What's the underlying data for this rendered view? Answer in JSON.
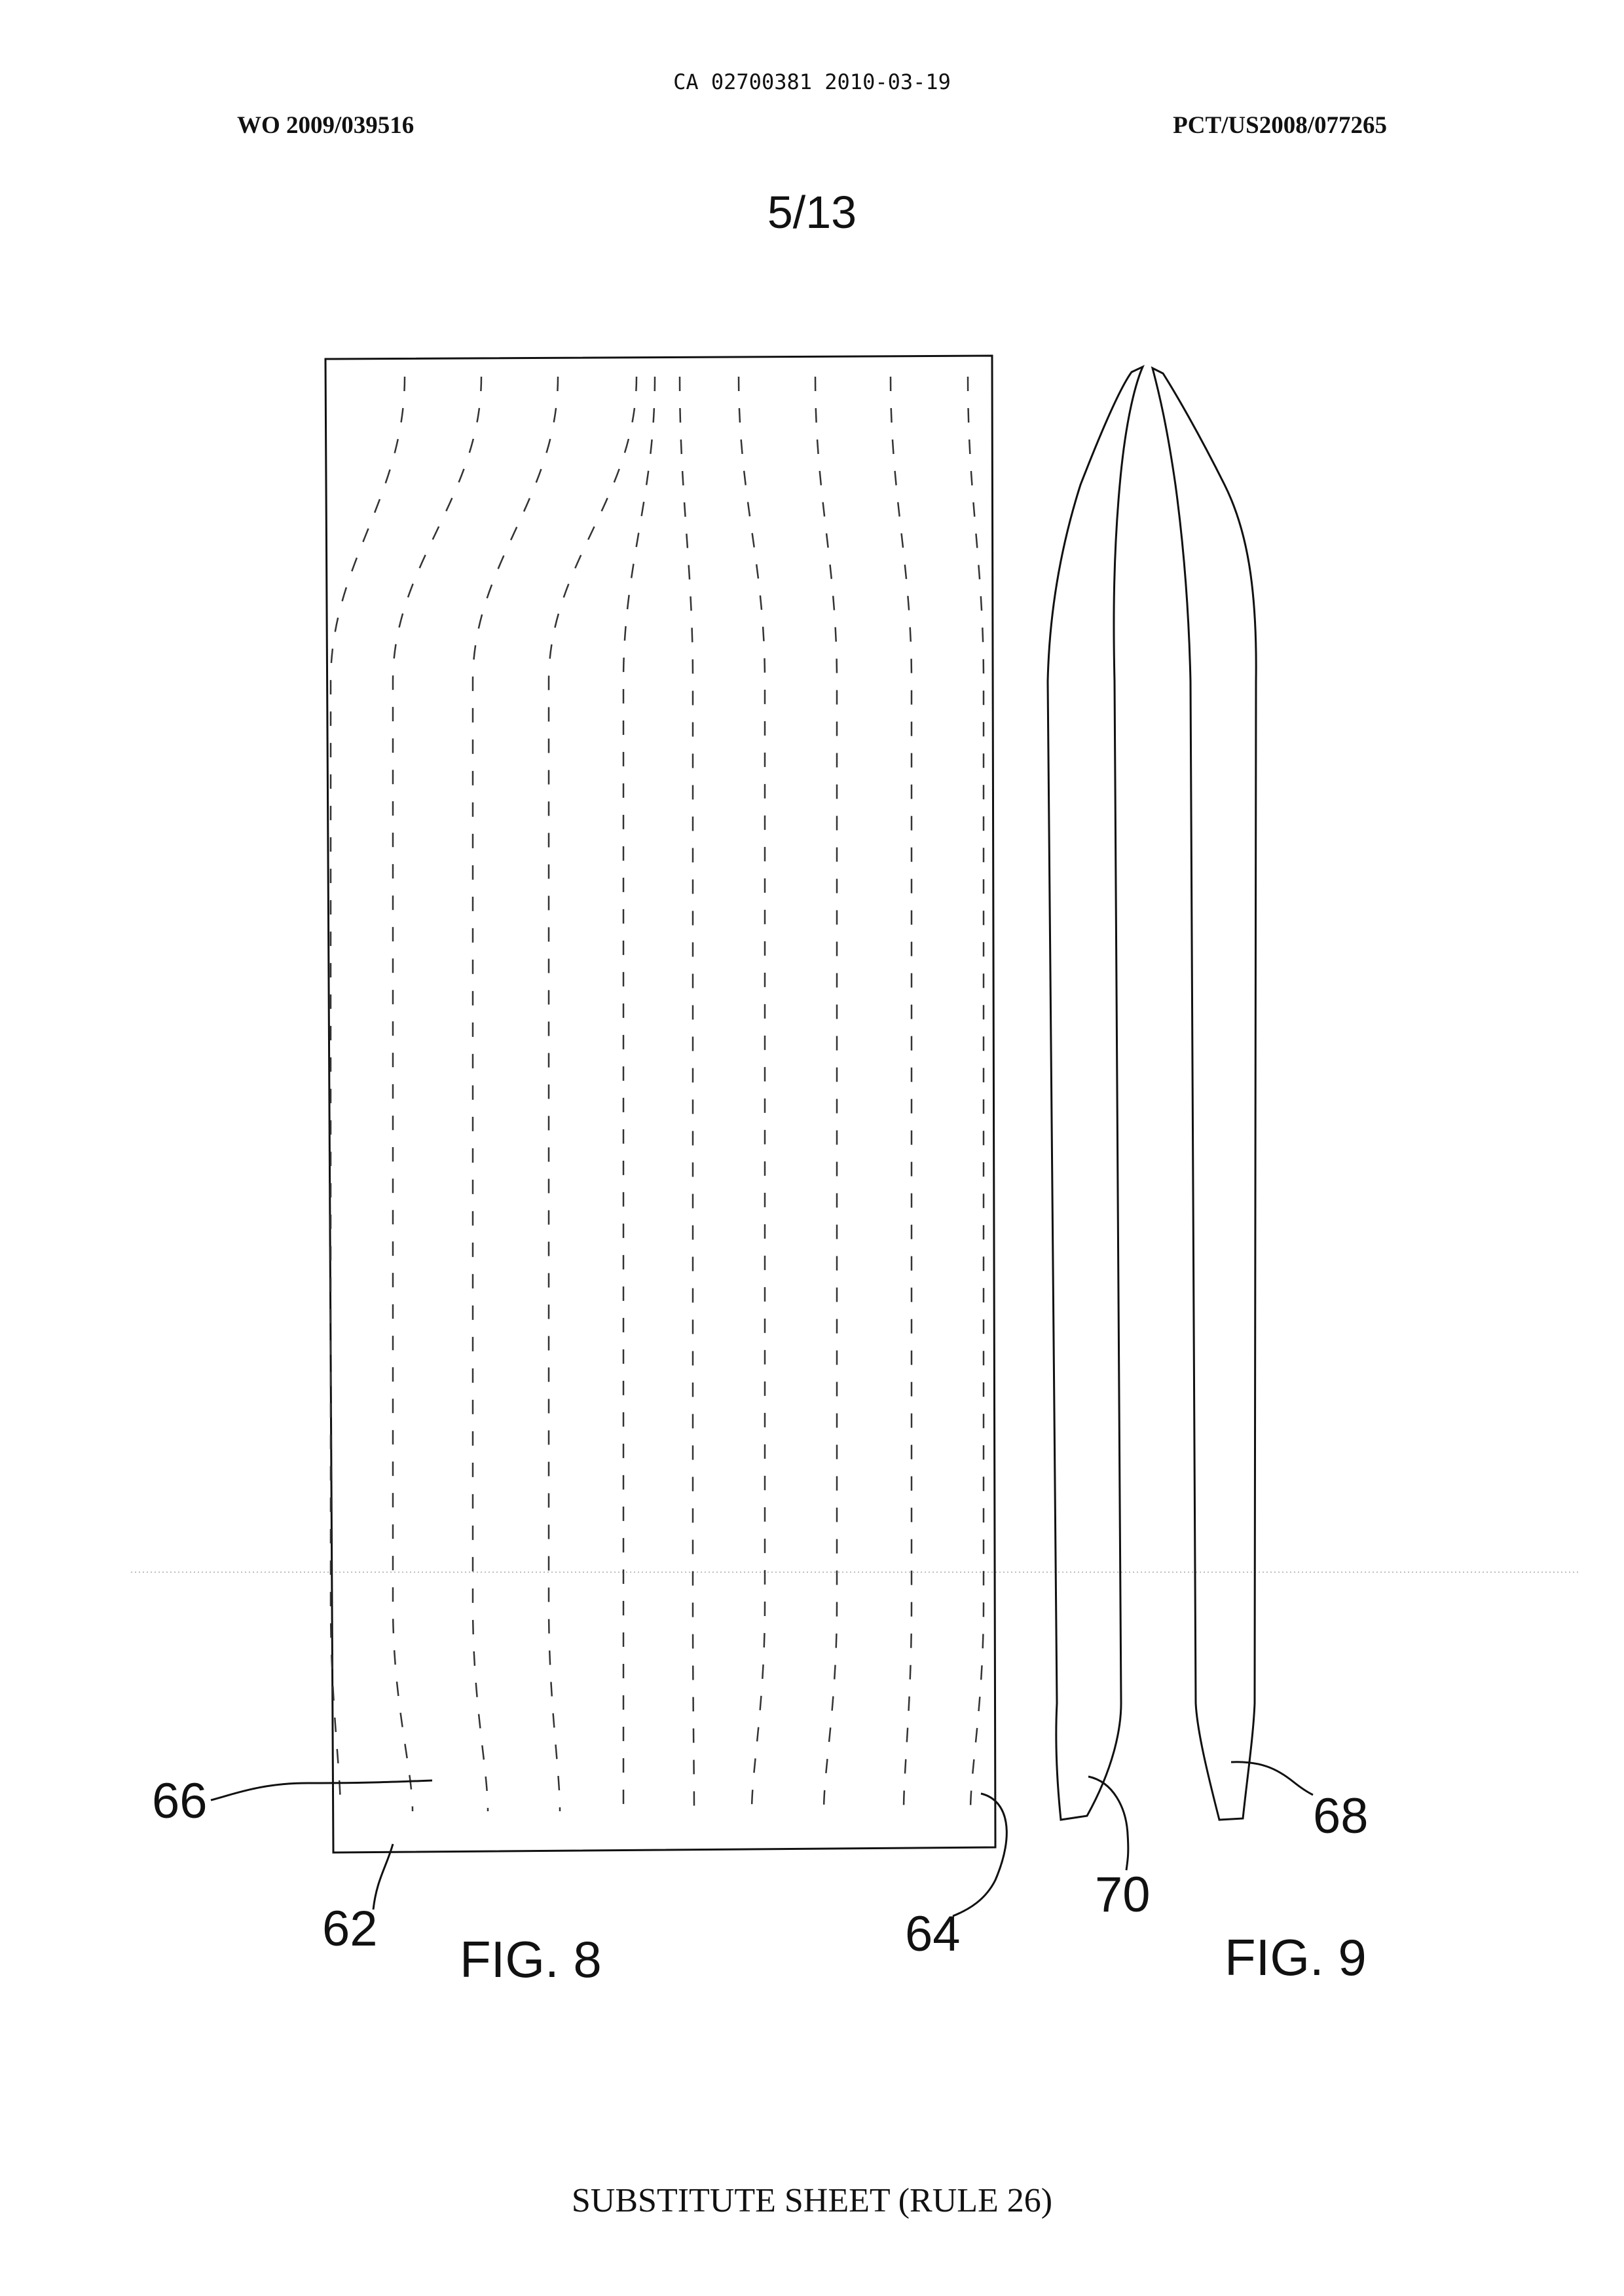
{
  "header": {
    "ca_line": "CA 02700381 2010-03-19",
    "wo_number": "WO 2009/039516",
    "pct_number": "PCT/US2008/077265",
    "sheet_number": "5/13"
  },
  "figures": {
    "fig8": {
      "caption": "FIG. 8",
      "ref_66": "66",
      "ref_62": "62",
      "ref_64": "64"
    },
    "fig9": {
      "caption": "FIG. 9",
      "ref_70": "70",
      "ref_68": "68"
    }
  },
  "footer": {
    "text": "SUBSTITUTE SHEET (RULE 26)"
  },
  "colors": {
    "ink": "#111111",
    "dashes": "#333333",
    "scan_line": "#bdbdbd"
  }
}
